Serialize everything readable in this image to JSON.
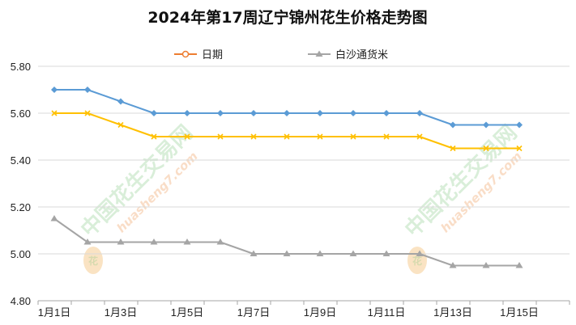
{
  "chart_data": {
    "type": "line",
    "title": "2024年第17周辽宁锦州花生价格走势图",
    "categories": [
      "1月1日",
      "1月2日",
      "1月3日",
      "1月4日",
      "1月5日",
      "1月6日",
      "1月7日",
      "1月8日",
      "1月9日",
      "1月10日",
      "1月11日",
      "1月12日",
      "1月13日",
      "1月14日",
      "1月15日"
    ],
    "x_tick_labels": [
      "1月1日",
      "1月3日",
      "1月5日",
      "1月7日",
      "1月9日",
      "1月11日",
      "1月13日",
      "1月15日"
    ],
    "series": [
      {
        "values": [
          5.7,
          5.7,
          5.65,
          5.6,
          5.6,
          5.6,
          5.6,
          5.6,
          5.6,
          5.6,
          5.6,
          5.6,
          5.55,
          5.55,
          5.55
        ],
        "color": "#5b9bd5",
        "marker": "diamond"
      },
      {
        "values": [
          5.6,
          5.6,
          5.55,
          5.5,
          5.5,
          5.5,
          5.5,
          5.5,
          5.5,
          5.5,
          5.5,
          5.5,
          5.45,
          5.45,
          5.45
        ],
        "color": "#ffc000",
        "marker": "x"
      },
      {
        "name": "白沙通货米",
        "values": [
          5.15,
          5.05,
          5.05,
          5.05,
          5.05,
          5.05,
          5.0,
          5.0,
          5.0,
          5.0,
          5.0,
          5.0,
          4.95,
          4.95,
          4.95
        ],
        "color": "#a5a5a5",
        "marker": "triangle"
      }
    ],
    "legend": [
      {
        "name": "日期",
        "color": "#ed7d31",
        "marker": "circle"
      },
      {
        "name": "白沙通货米",
        "color": "#a5a5a5",
        "marker": "triangle"
      }
    ],
    "legend_position": "top",
    "ylim": [
      4.8,
      5.8
    ],
    "y_ticks": [
      "5.80",
      "5.60",
      "5.40",
      "5.20",
      "5.00",
      "4.80"
    ],
    "xlabel": "",
    "ylabel": "",
    "grid": true
  },
  "watermark": {
    "text": "中国花生交易网",
    "url": "huasheng7.com",
    "logo_char": "花",
    "color": "#7bc47b"
  }
}
